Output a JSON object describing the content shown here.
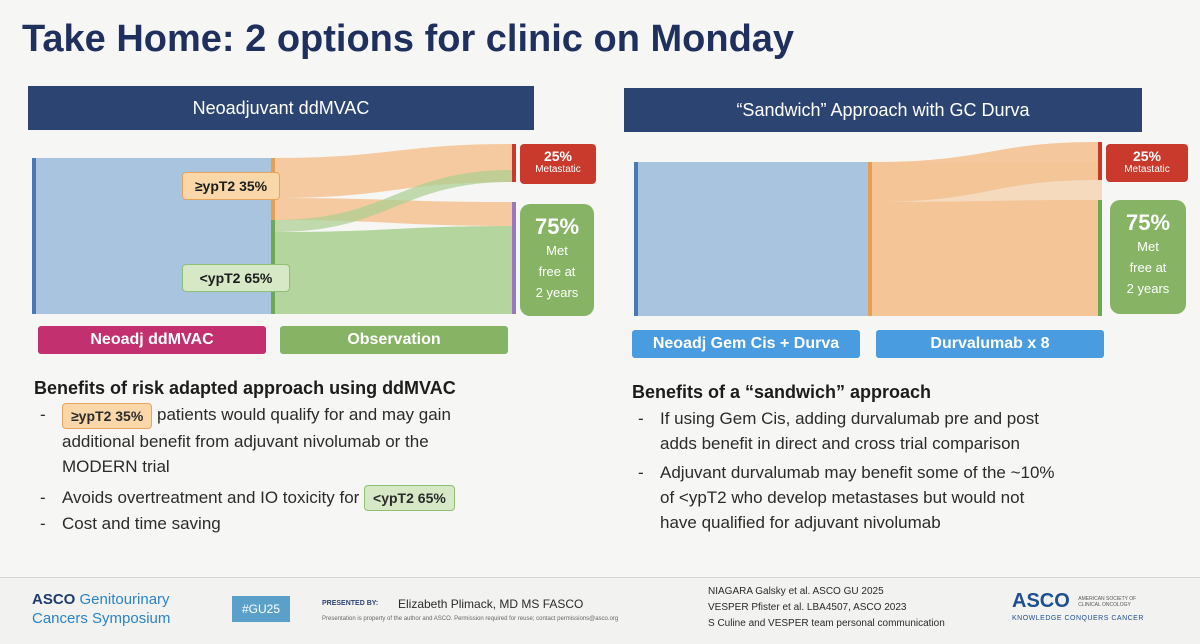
{
  "title": "Take Home: 2 options for clinic on Monday",
  "left": {
    "header": "Neoadjuvant ddMVAC",
    "tag_high": "≥ypT2 35%",
    "tag_low": "<ypT2 65%",
    "outcome_metastatic_pct": "25%",
    "outcome_metastatic_label": "Metastatic",
    "outcome_free_pct": "75%",
    "outcome_free_line1": "Met",
    "outcome_free_line2": "free at",
    "outcome_free_line3": "2 years",
    "stage1": "Neoadj ddMVAC",
    "stage2": "Observation",
    "heading": "Benefits of risk adapted approach using ddMVAC",
    "b1_tag": "≥ypT2 35%",
    "b1_text1": " patients would qualify for and may gain",
    "b1_text2": "additional benefit from adjuvant nivolumab or the",
    "b1_text3": "MODERN trial",
    "b2_text": "Avoids overtreatment and IO toxicity for ",
    "b2_tag": "<ypT2 65%",
    "b3_text": "Cost and time saving"
  },
  "right": {
    "header": "“Sandwich” Approach with GC Durva",
    "outcome_metastatic_pct": "25%",
    "outcome_metastatic_label": "Metastatic",
    "outcome_free_pct": "75%",
    "outcome_free_line1": "Met",
    "outcome_free_line2": "free at",
    "outcome_free_line3": "2 years",
    "stage1": "Neoadj Gem Cis + Durva",
    "stage2": "Durvalumab x 8",
    "heading": "Benefits of a “sandwich” approach",
    "b1_line1": "If using Gem Cis, adding durvalumab pre and post",
    "b1_line2": "adds benefit in direct and cross trial comparison",
    "b2_line1": "Adjuvant durvalumab may benefit some of the ~10%",
    "b2_line2": "of <ypT2 who develop metastases but would not",
    "b2_line3": "have qualified for adjuvant nivolumab"
  },
  "footer": {
    "asco_gu_line1_bold": "ASCO",
    "asco_gu_line1_rest": " Genitourinary",
    "asco_gu_line2": "Cancers Symposium",
    "hashtag": "#GU25",
    "presented_by": "PRESENTED BY:",
    "presenter": "Elizabeth Plimack, MD MS FASCO",
    "disclaimer": "Presentation is property of the author and ASCO. Permission required for reuse; contact permissions@asco.org",
    "ref1": "NIAGARA Galsky et al. ASCO GU 2025",
    "ref2": "VESPER Pfister et al. LBA4507, ASCO 2023",
    "ref3": "S Culine and VESPER team personal communication",
    "asco_logo": "ASCO",
    "asco_sub1": "AMERICAN SOCIETY OF",
    "asco_sub2": "CLINICAL ONCOLOGY",
    "asco_tagline": "KNOWLEDGE CONQUERS CANCER"
  },
  "colors": {
    "navy": "#2c4472",
    "blue_bar": "#a9c4de",
    "orange": "#f4c292",
    "green": "#a9cf8f",
    "red": "#c93a2c",
    "magenta": "#c2306f",
    "stage_green": "#86b464",
    "stage_blue": "#4a9ce0"
  }
}
